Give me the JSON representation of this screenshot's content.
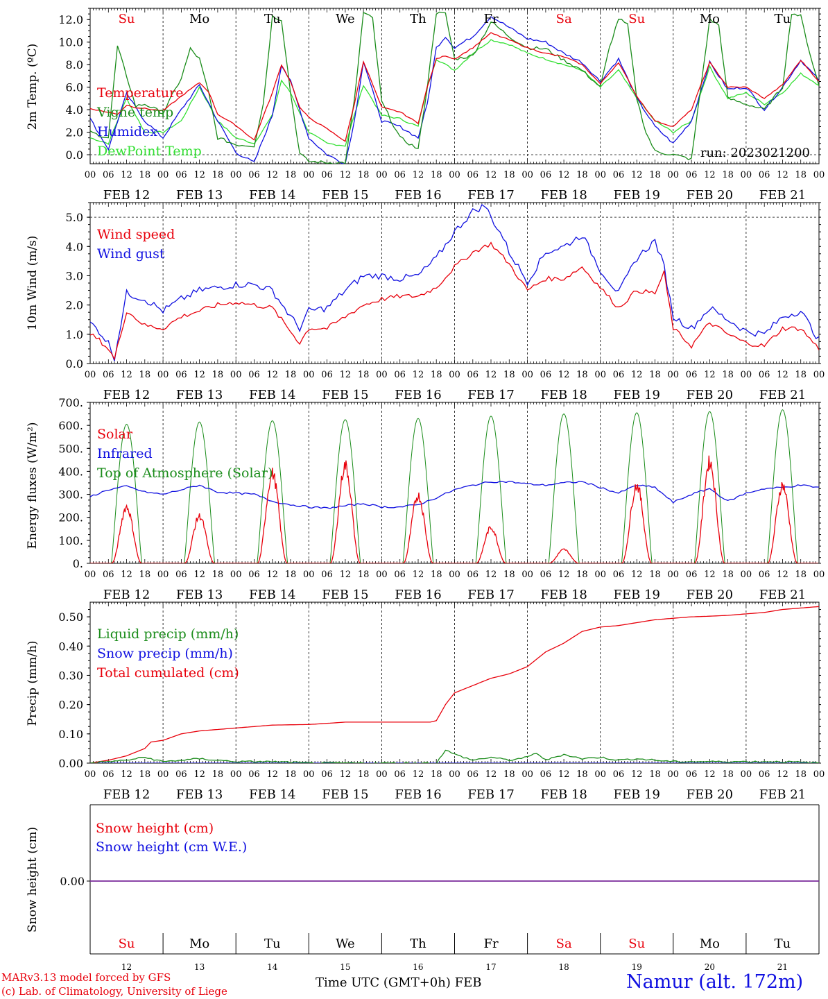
{
  "days": [
    "Su",
    "Mo",
    "Tu",
    "We",
    "Th",
    "Fr",
    "Sa",
    "Su",
    "Mo",
    "Tu"
  ],
  "weekend_flags": [
    true,
    false,
    false,
    false,
    false,
    false,
    true,
    true,
    false,
    false
  ],
  "dates": [
    "FEB 12",
    "FEB 13",
    "FEB 14",
    "FEB 15",
    "FEB 16",
    "FEB 17",
    "FEB 18",
    "FEB 19",
    "FEB 20",
    "FEB 21"
  ],
  "date_numbers": [
    "12",
    "13",
    "14",
    "15",
    "16",
    "17",
    "18",
    "19",
    "20",
    "21"
  ],
  "hour_ticks": [
    "00",
    "06",
    "12",
    "18"
  ],
  "end_tick": "00",
  "colors": {
    "red": "#e8000b",
    "green": "#1a8c1a",
    "blue": "#1010e0",
    "lightgreen": "#33e033",
    "purple": "#7a2a9a"
  },
  "panels": {
    "temp": {
      "ylabel": "2m Temp. (ºC)",
      "ticks": [
        "0.0",
        "2.0",
        "4.0",
        "6.0",
        "8.0",
        "10.0",
        "12.0"
      ],
      "tick_values": [
        0,
        2,
        4,
        6,
        8,
        10,
        12
      ],
      "legend": [
        "Temperature",
        "Vigne temp",
        "Humidex",
        "DewPoint Temp"
      ],
      "run": "run: 2023021200"
    },
    "wind": {
      "ylabel": "10m Wind (m/s)",
      "ticks": [
        "0.0",
        "1.0",
        "2.0",
        "3.0",
        "4.0",
        "5.0"
      ],
      "tick_values": [
        0,
        1,
        2,
        3,
        4,
        5
      ],
      "legend": [
        "Wind speed",
        "Wind gust"
      ]
    },
    "energy": {
      "ylabel": "Energy fluxes (W/m²)",
      "ticks": [
        "0.",
        "100.",
        "200.",
        "300.",
        "400.",
        "500.",
        "600.",
        "700."
      ],
      "tick_values": [
        0,
        100,
        200,
        300,
        400,
        500,
        600,
        700
      ],
      "legend": [
        "Solar",
        "Infrared",
        "Top of Atmosphere (Solar)"
      ]
    },
    "precip": {
      "ylabel": "Precip (mm/h)",
      "ticks": [
        "0.00",
        "0.10",
        "0.20",
        "0.30",
        "0.40",
        "0.50"
      ],
      "tick_values": [
        0,
        0.1,
        0.2,
        0.3,
        0.4,
        0.5
      ],
      "legend": [
        "Liquid precip (mm/h)",
        "Snow precip (mm/h)",
        "Total cumulated (cm)"
      ]
    },
    "snow": {
      "ylabel": "Snow height (cm)",
      "ticks": [
        "0.00"
      ],
      "tick_values": [
        0
      ],
      "legend": [
        "Snow height (cm)",
        "Snow height (cm W.E.)"
      ]
    }
  },
  "footer": {
    "credit1": "MARv3.13 model forced by GFS",
    "credit2": "(c) Lab. of Climatology, University of Liege",
    "xlabel": "Time UTC (GMT+0h)",
    "month": "FEB",
    "station": "Namur (alt. 172m)"
  },
  "chart_data": [
    {
      "type": "line",
      "title": "",
      "ylabel": "2m Temp. (ºC)",
      "ylim": [
        -0.8,
        13.0
      ],
      "x_unit": "hours since Feb 12 00 UTC",
      "series": [
        {
          "name": "Temperature",
          "x": [
            0,
            9,
            12,
            15,
            24,
            30,
            36,
            39,
            42,
            48,
            54,
            60,
            63,
            66,
            69,
            72,
            78,
            84,
            87,
            90,
            96,
            102,
            108,
            111,
            114,
            117,
            120,
            126,
            132,
            138,
            144,
            150,
            156,
            162,
            168,
            174,
            180,
            186,
            192,
            198,
            204,
            210,
            216,
            222,
            228,
            234,
            240
          ],
          "y": [
            4.1,
            3.6,
            4.4,
            4.2,
            3.9,
            5.2,
            6.4,
            5.6,
            3.6,
            2.6,
            1.3,
            5.5,
            8.0,
            6.5,
            4.2,
            3.3,
            2.3,
            1.2,
            4.5,
            8.3,
            4.2,
            3.8,
            2.8,
            6.0,
            8.5,
            8.8,
            8.5,
            9.5,
            10.8,
            10.2,
            9.5,
            9.0,
            8.7,
            8.0,
            6.3,
            8.2,
            5.2,
            3.0,
            2.5,
            4.0,
            8.2,
            6.0,
            6.0,
            5.0,
            6.2,
            8.4,
            6.5
          ]
        },
        {
          "name": "Vigne temp",
          "x": [
            0,
            6,
            9,
            12,
            15,
            18,
            24,
            30,
            33,
            36,
            39,
            42,
            48,
            54,
            57,
            60,
            63,
            66,
            69,
            72,
            78,
            84,
            87,
            90,
            93,
            96,
            102,
            108,
            111,
            114,
            117,
            120,
            126,
            132,
            138,
            144,
            150,
            156,
            162,
            168,
            171,
            174,
            177,
            180,
            183,
            186,
            192,
            198,
            204,
            207,
            210,
            216,
            222,
            228,
            231,
            234,
            237,
            240
          ],
          "y": [
            2.0,
            1.5,
            9.6,
            7.0,
            4.3,
            4.5,
            3.7,
            6.8,
            9.4,
            8.5,
            5.5,
            1.5,
            0.9,
            0.8,
            4.5,
            12.3,
            12.0,
            5.5,
            0.1,
            -0.6,
            -0.7,
            -0.7,
            4.8,
            12.6,
            12.1,
            4.7,
            1.5,
            0.5,
            6.0,
            12.6,
            12.5,
            8.5,
            8.8,
            11.8,
            10.5,
            9.5,
            9.4,
            8.4,
            7.5,
            6.0,
            9.5,
            12.1,
            11.5,
            5.0,
            2.0,
            0.3,
            0.0,
            -0.4,
            12.0,
            11.5,
            5.0,
            4.5,
            4.0,
            6.0,
            12.6,
            12.3,
            9.0,
            6.1
          ]
        },
        {
          "name": "Humidex",
          "x": [
            0,
            6,
            12,
            18,
            24,
            30,
            36,
            42,
            48,
            54,
            60,
            63,
            66,
            72,
            78,
            84,
            87,
            90,
            96,
            102,
            108,
            111,
            114,
            117,
            120,
            126,
            132,
            138,
            144,
            150,
            156,
            162,
            168,
            174,
            180,
            186,
            192,
            198,
            204,
            210,
            216,
            222,
            228,
            234,
            240
          ],
          "y": [
            3.2,
            0.5,
            5.4,
            3.0,
            1.5,
            4.0,
            6.2,
            3.0,
            0.2,
            -0.7,
            3.5,
            8.0,
            6.5,
            1.5,
            0.0,
            -0.8,
            3.0,
            8.3,
            3.0,
            2.5,
            1.5,
            4.5,
            9.5,
            10.5,
            9.5,
            10.5,
            12.3,
            11.3,
            10.3,
            10.0,
            9.0,
            8.2,
            6.5,
            8.5,
            5.0,
            2.5,
            1.0,
            3.0,
            8.2,
            5.8,
            6.0,
            4.0,
            6.0,
            8.4,
            6.6
          ]
        },
        {
          "name": "DewPoint Temp",
          "x": [
            0,
            6,
            12,
            18,
            24,
            30,
            36,
            42,
            48,
            54,
            60,
            63,
            66,
            72,
            78,
            84,
            90,
            96,
            102,
            108,
            111,
            114,
            117,
            120,
            126,
            132,
            138,
            144,
            150,
            156,
            162,
            168,
            174,
            180,
            186,
            192,
            198,
            204,
            210,
            216,
            222,
            228,
            234,
            240
          ],
          "y": [
            1.5,
            1.0,
            5.0,
            2.0,
            2.0,
            3.0,
            6.0,
            3.0,
            1.5,
            1.0,
            3.5,
            6.6,
            5.5,
            2.0,
            1.0,
            0.8,
            6.2,
            3.5,
            3.2,
            2.5,
            6.0,
            8.5,
            8.0,
            7.5,
            9.0,
            10.2,
            9.8,
            9.0,
            8.5,
            8.0,
            7.5,
            6.0,
            7.5,
            5.0,
            3.0,
            2.0,
            3.0,
            7.8,
            5.0,
            5.5,
            4.5,
            5.5,
            7.2,
            6.2
          ]
        }
      ]
    },
    {
      "type": "line",
      "title": "",
      "ylabel": "10m Wind (m/s)",
      "ylim": [
        0,
        5.5
      ],
      "x_unit": "hours since Feb 12 00 UTC",
      "series": [
        {
          "name": "Wind speed",
          "x": [
            0,
            3,
            6,
            8,
            12,
            18,
            24,
            30,
            36,
            42,
            48,
            54,
            60,
            66,
            69,
            72,
            78,
            84,
            90,
            96,
            102,
            108,
            114,
            120,
            126,
            132,
            138,
            144,
            150,
            156,
            162,
            168,
            174,
            180,
            186,
            189,
            192,
            198,
            204,
            210,
            216,
            222,
            228,
            234,
            240
          ],
          "y": [
            1.0,
            0.8,
            0.5,
            0.15,
            1.8,
            1.3,
            1.2,
            1.6,
            1.8,
            2.0,
            2.1,
            2.0,
            1.9,
            1.1,
            0.7,
            1.2,
            1.2,
            1.6,
            2.0,
            2.2,
            2.3,
            2.3,
            2.6,
            3.3,
            3.8,
            4.1,
            3.4,
            2.5,
            2.9,
            2.9,
            3.3,
            2.6,
            1.9,
            2.5,
            2.4,
            3.1,
            1.2,
            0.6,
            1.4,
            1.0,
            0.7,
            0.6,
            1.2,
            1.2,
            0.5
          ]
        },
        {
          "name": "Wind gust",
          "x": [
            0,
            3,
            6,
            8,
            12,
            18,
            24,
            30,
            36,
            42,
            48,
            54,
            60,
            66,
            69,
            72,
            78,
            84,
            90,
            96,
            102,
            108,
            114,
            120,
            126,
            130,
            132,
            136,
            138,
            144,
            150,
            156,
            162,
            168,
            174,
            180,
            186,
            189,
            192,
            198,
            204,
            210,
            216,
            222,
            228,
            234,
            240
          ],
          "y": [
            1.4,
            1.1,
            0.7,
            0.2,
            2.4,
            2.2,
            1.8,
            2.2,
            2.5,
            2.6,
            2.7,
            2.7,
            2.5,
            1.6,
            1.2,
            1.8,
            1.9,
            2.5,
            3.0,
            3.0,
            2.9,
            3.0,
            3.6,
            4.5,
            5.2,
            5.4,
            5.0,
            4.3,
            3.8,
            2.8,
            3.8,
            4.0,
            4.4,
            3.2,
            2.4,
            3.6,
            4.2,
            3.3,
            1.6,
            1.2,
            1.9,
            1.5,
            1.1,
            1.0,
            1.6,
            1.8,
            0.8
          ]
        }
      ]
    },
    {
      "type": "line",
      "title": "",
      "ylabel": "Energy fluxes (W/m²)",
      "ylim": [
        0,
        700
      ],
      "x_unit": "hours since Feb 12 00 UTC",
      "toa_peaks": [
        605,
        615,
        620,
        625,
        630,
        640,
        650,
        655,
        660,
        668
      ],
      "solar_peaks": [
        245,
        205,
        390,
        425,
        295,
        155,
        60,
        340,
        440,
        340
      ],
      "series": [
        {
          "name": "Solar",
          "values_note": "daily peak near 12 UTC, zero at night (see solar_peaks)"
        },
        {
          "name": "Infrared",
          "x": [
            0,
            6,
            12,
            18,
            24,
            30,
            36,
            42,
            48,
            54,
            60,
            66,
            72,
            78,
            84,
            90,
            96,
            102,
            108,
            114,
            120,
            126,
            132,
            138,
            144,
            150,
            156,
            162,
            168,
            174,
            180,
            186,
            192,
            198,
            204,
            210,
            216,
            222,
            228,
            234,
            240
          ],
          "y": [
            290,
            320,
            335,
            310,
            300,
            320,
            340,
            310,
            305,
            300,
            270,
            255,
            245,
            240,
            250,
            260,
            245,
            245,
            255,
            285,
            320,
            340,
            355,
            355,
            345,
            340,
            350,
            355,
            330,
            305,
            340,
            330,
            265,
            300,
            325,
            270,
            305,
            325,
            330,
            340,
            330
          ]
        },
        {
          "name": "Top of Atmosphere (Solar)",
          "values_note": "daily peak near 12 UTC (see toa_peaks)"
        }
      ]
    },
    {
      "type": "line",
      "title": "",
      "ylabel": "Precip (mm/h)",
      "ylim": [
        0,
        0.55
      ],
      "x_unit": "hours since Feb 12 00 UTC",
      "series": [
        {
          "name": "Liquid precip (mm/h)",
          "x": [
            0,
            6,
            12,
            18,
            24,
            36,
            48,
            60,
            72,
            96,
            108,
            114,
            117,
            120,
            123,
            126,
            132,
            138,
            144,
            147,
            150,
            156,
            162,
            168,
            174,
            180,
            186,
            192,
            204,
            216,
            228,
            240
          ],
          "y": [
            0,
            0.005,
            0.01,
            0.02,
            0.005,
            0.015,
            0.005,
            0.005,
            0,
            0,
            0,
            0,
            0.045,
            0.03,
            0.02,
            0.01,
            0.02,
            0.01,
            0.02,
            0.035,
            0.01,
            0.03,
            0.015,
            0.02,
            0.01,
            0.015,
            0.01,
            0.005,
            0.005,
            0.005,
            0.005,
            0
          ]
        },
        {
          "name": "Snow precip (mm/h)",
          "x": [
            0,
            240
          ],
          "y": [
            0,
            0
          ]
        },
        {
          "name": "Total cumulated (cm)",
          "x": [
            0,
            6,
            12,
            18,
            20,
            24,
            30,
            36,
            42,
            48,
            54,
            60,
            72,
            84,
            96,
            102,
            108,
            112,
            114,
            117,
            120,
            126,
            132,
            138,
            144,
            150,
            156,
            162,
            168,
            174,
            180,
            186,
            192,
            198,
            204,
            210,
            216,
            222,
            228,
            234,
            240
          ],
          "y": [
            0,
            0.01,
            0.025,
            0.05,
            0.072,
            0.078,
            0.1,
            0.11,
            0.115,
            0.12,
            0.125,
            0.13,
            0.132,
            0.14,
            0.14,
            0.14,
            0.14,
            0.14,
            0.145,
            0.2,
            0.24,
            0.265,
            0.29,
            0.305,
            0.33,
            0.38,
            0.41,
            0.45,
            0.465,
            0.47,
            0.48,
            0.49,
            0.495,
            0.5,
            0.502,
            0.505,
            0.51,
            0.515,
            0.525,
            0.53,
            0.535
          ]
        }
      ]
    },
    {
      "type": "line",
      "title": "",
      "ylabel": "Snow height (cm)",
      "ylim": [
        -0.5,
        0.5
      ],
      "x_unit": "hours since Feb 12 00 UTC",
      "series": [
        {
          "name": "Snow height (cm)",
          "x": [
            0,
            240
          ],
          "y": [
            0,
            0
          ]
        },
        {
          "name": "Snow height (cm W.E.)",
          "x": [
            0,
            240
          ],
          "y": [
            0,
            0
          ]
        }
      ]
    }
  ]
}
